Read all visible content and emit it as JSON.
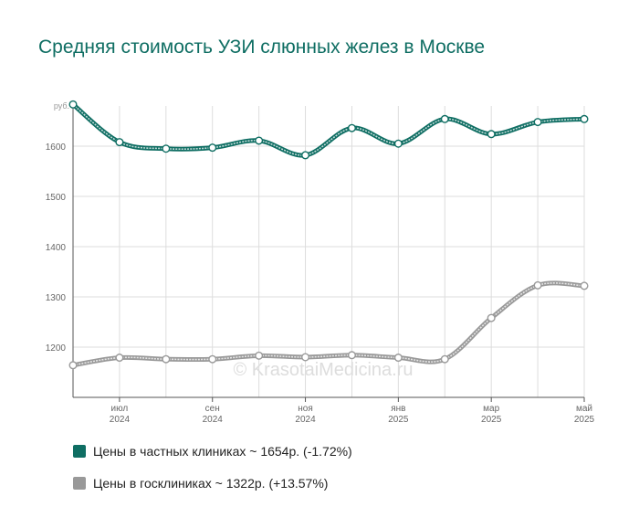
{
  "title": "Средняя стоимость УЗИ слюнных желез в Москве",
  "watermark": "© KrasotaiMedicina.ru",
  "chart_data": {
    "type": "line",
    "y_unit": "руб.",
    "ylim": [
      1100,
      1680
    ],
    "y_ticks": [
      1200,
      1300,
      1400,
      1500,
      1600
    ],
    "grid": true,
    "legend_position": "bottom-left",
    "x_labels": [
      {
        "month": "июл",
        "year": "2024",
        "index": 1
      },
      {
        "month": "сен",
        "year": "2024",
        "index": 3
      },
      {
        "month": "ноя",
        "year": "2024",
        "index": 5
      },
      {
        "month": "янв",
        "year": "2025",
        "index": 7
      },
      {
        "month": "мар",
        "year": "2025",
        "index": 9
      },
      {
        "month": "май",
        "year": "2025",
        "index": 11
      }
    ],
    "series": [
      {
        "name": "Цены в частных клиниках ~ 1654р. (-1.72%)",
        "color": "#0f6e63",
        "values": [
          1683,
          1608,
          1595,
          1597,
          1611,
          1582,
          1636,
          1605,
          1654,
          1624,
          1648,
          1654
        ]
      },
      {
        "name": "Цены в госклиниках ~ 1322р. (+13.57%)",
        "color": "#999999",
        "values": [
          1164,
          1179,
          1176,
          1176,
          1183,
          1180,
          1184,
          1179,
          1176,
          1258,
          1323,
          1322
        ]
      }
    ]
  }
}
